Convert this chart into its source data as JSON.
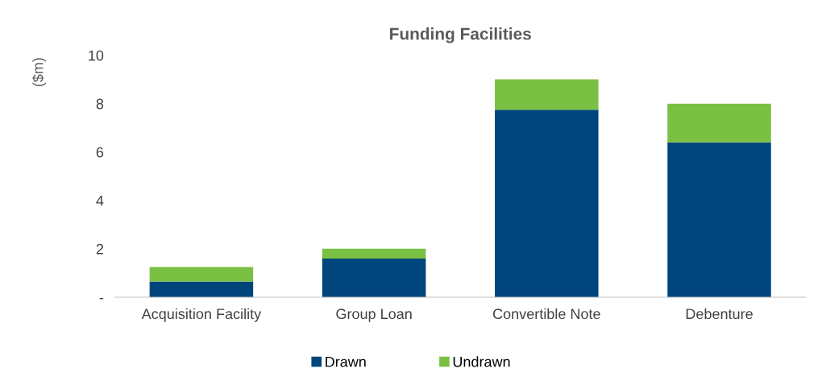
{
  "chart_data": {
    "type": "bar",
    "title": "Funding Facilities",
    "ylabel": "($m)",
    "categories": [
      "Acquisition Facility",
      "Group Loan",
      "Convertible Note",
      "Debenture"
    ],
    "stacked": true,
    "series": [
      {
        "name": "Drawn",
        "color": "#00457c",
        "values": [
          0.65,
          1.6,
          7.75,
          6.4
        ]
      },
      {
        "name": "Undrawn",
        "color": "#7ac143",
        "values": [
          0.6,
          0.4,
          1.25,
          1.6
        ]
      }
    ],
    "ylim": [
      0,
      10
    ],
    "yticks": [
      {
        "value": 0,
        "label": "-"
      },
      2,
      4,
      6,
      8,
      10
    ],
    "grid": false,
    "legend": "bottom"
  }
}
